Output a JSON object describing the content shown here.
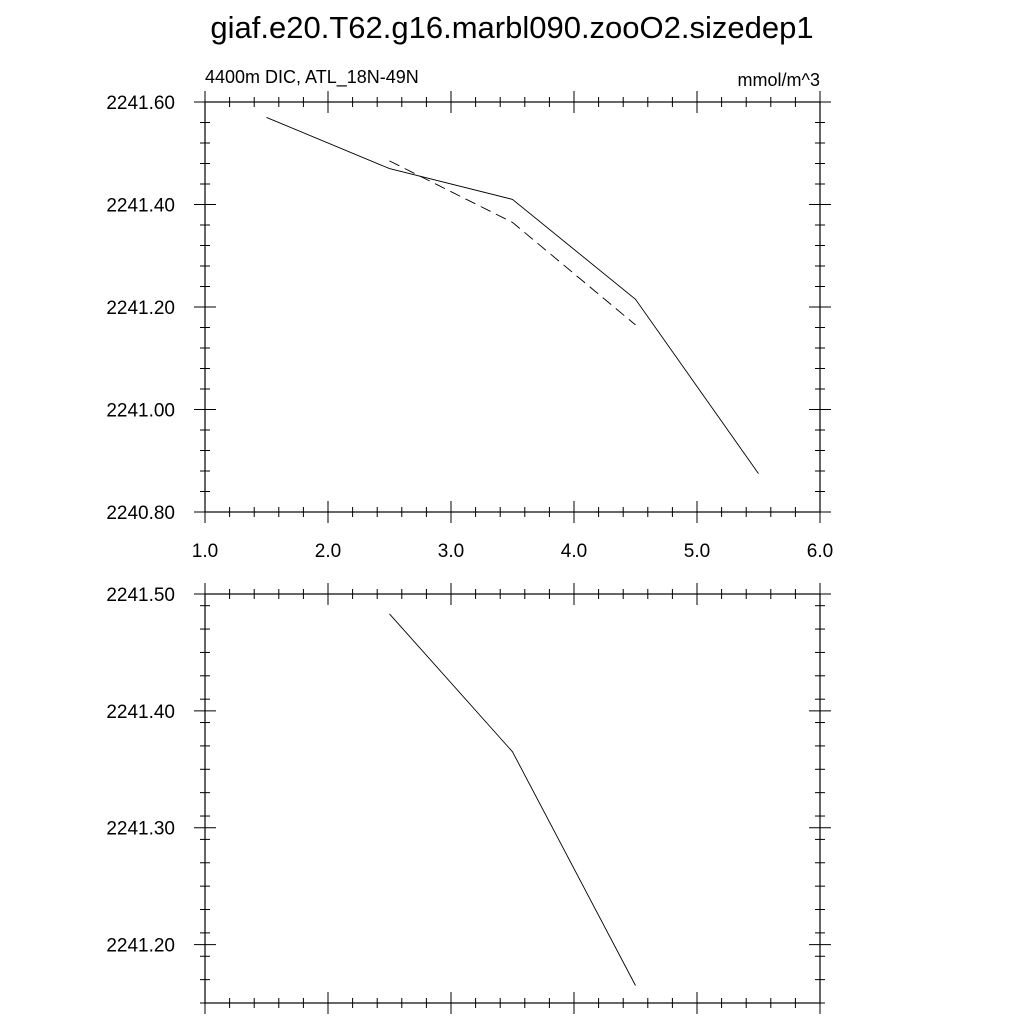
{
  "title": "giaf.e20.T62.g16.marbl090.zooO2.sizedep1",
  "chart_data": [
    {
      "type": "line",
      "left_label": "4400m DIC, ATL_18N-49N",
      "right_label": "mmol/m^3",
      "xlim": [
        1.0,
        6.0
      ],
      "ylim": [
        2240.8,
        2241.6
      ],
      "x_ticks": [
        "1.0",
        "2.0",
        "3.0",
        "4.0",
        "5.0",
        "6.0"
      ],
      "y_ticks": [
        "2240.80",
        "2241.00",
        "2241.20",
        "2241.40",
        "2241.60"
      ],
      "series": [
        {
          "style": "solid",
          "x": [
            1.5,
            2.5,
            3.5,
            4.5,
            5.5
          ],
          "y": [
            2241.57,
            2241.47,
            2241.41,
            2241.215,
            2240.875
          ]
        },
        {
          "style": "dashed",
          "x": [
            2.5,
            3.5,
            4.5
          ],
          "y": [
            2241.485,
            2241.365,
            2241.165
          ]
        }
      ]
    },
    {
      "type": "line",
      "xlim": [
        1.0,
        6.0
      ],
      "ylim": [
        2241.15,
        2241.5
      ],
      "y_ticks": [
        "2241.20",
        "2241.30",
        "2241.40",
        "2241.50"
      ],
      "series": [
        {
          "style": "solid",
          "x": [
            2.5,
            3.5,
            4.5
          ],
          "y": [
            2241.483,
            2241.365,
            2241.165
          ]
        }
      ]
    }
  ]
}
